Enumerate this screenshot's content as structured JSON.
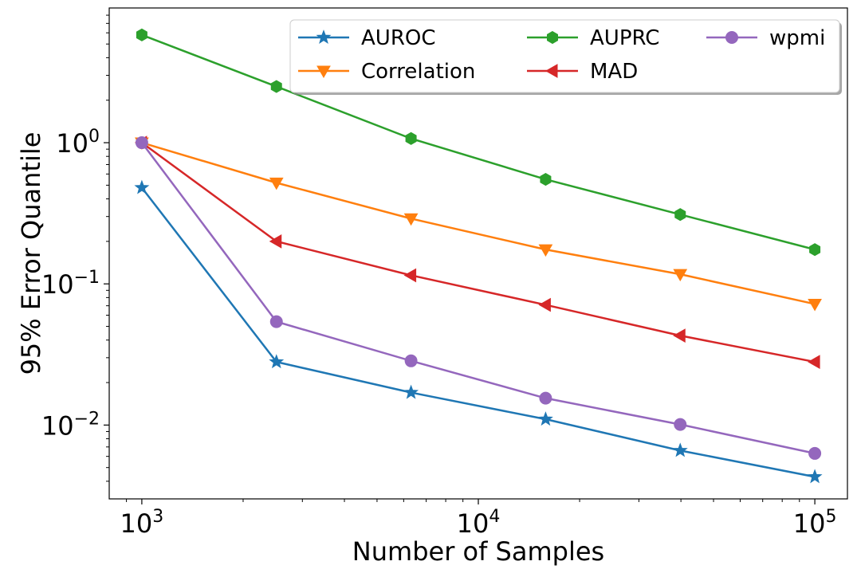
{
  "chart_data": {
    "type": "line",
    "xscale": "log",
    "yscale": "log",
    "xlabel": "Number of Samples",
    "ylabel": "95% Error Quantile",
    "xlim": [
      800,
      125000
    ],
    "ylim": [
      0.003,
      9
    ],
    "x": [
      1000,
      2512,
      6310,
      15849,
      39811,
      100000
    ],
    "xticks": [
      {
        "base": "10",
        "exp": "3",
        "value": 1000
      },
      {
        "base": "10",
        "exp": "4",
        "value": 10000
      },
      {
        "base": "10",
        "exp": "5",
        "value": 100000
      }
    ],
    "yticks": [
      {
        "base": "10",
        "exp": "0",
        "value": 1
      },
      {
        "base": "10",
        "exp": "−1",
        "value": 0.1
      },
      {
        "base": "10",
        "exp": "−2",
        "value": 0.01
      }
    ],
    "legend_position": "top-right",
    "legend_columns": 3,
    "series": [
      {
        "name": "AUROC",
        "color": "#1f77b4",
        "marker": "star",
        "values": [
          0.48,
          0.028,
          0.017,
          0.011,
          0.0066,
          0.0043
        ]
      },
      {
        "name": "Correlation",
        "color": "#ff7f0e",
        "marker": "triangle-down",
        "values": [
          1.0,
          0.52,
          0.29,
          0.175,
          0.117,
          0.072
        ]
      },
      {
        "name": "AUPRC",
        "color": "#2ca02c",
        "marker": "hexagon",
        "values": [
          5.8,
          2.5,
          1.07,
          0.55,
          0.31,
          0.175
        ]
      },
      {
        "name": "MAD",
        "color": "#d62728",
        "marker": "triangle-left",
        "values": [
          1.0,
          0.2,
          0.115,
          0.071,
          0.043,
          0.028
        ]
      },
      {
        "name": "wpmi",
        "color": "#9467bd",
        "marker": "circle",
        "values": [
          1.0,
          0.054,
          0.0285,
          0.0155,
          0.0101,
          0.0063
        ]
      }
    ]
  }
}
